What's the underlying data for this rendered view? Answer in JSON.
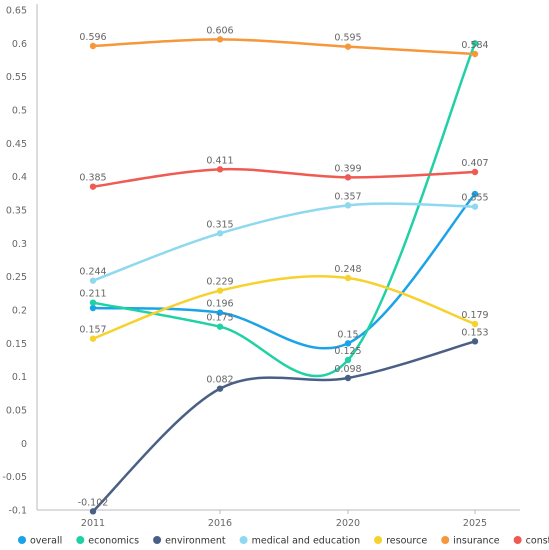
{
  "chart_data": {
    "type": "line",
    "x": [
      "2011",
      "2016",
      "2020",
      "2025"
    ],
    "ylim": [
      -0.1,
      0.65
    ],
    "yticks": [
      -0.1,
      -0.05,
      0,
      0.05,
      0.1,
      0.15,
      0.2,
      0.25,
      0.3,
      0.35,
      0.4,
      0.45,
      0.5,
      0.55,
      0.6,
      0.65
    ],
    "smooth": true,
    "grid": false,
    "legend_position": "bottom",
    "series": [
      {
        "name": "overall",
        "color": "#1aa3e8",
        "values": [
          0.203,
          0.196,
          0.15,
          0.374
        ],
        "labels": [
          "",
          "0.196",
          "0.15",
          ""
        ]
      },
      {
        "name": "economics",
        "color": "#1fd1a5",
        "values": [
          0.211,
          0.175,
          0.125,
          0.6
        ],
        "labels": [
          "0.211",
          "0.175",
          "0.125",
          ""
        ]
      },
      {
        "name": "environment",
        "color": "#4a5f85",
        "values": [
          -0.102,
          0.082,
          0.098,
          0.153
        ],
        "labels": [
          "-0.102",
          "0.082",
          "0.098",
          "0.153"
        ]
      },
      {
        "name": "medical and education",
        "color": "#8ed8f0",
        "values": [
          0.244,
          0.315,
          0.357,
          0.355
        ],
        "labels": [
          "0.244",
          "0.315",
          "0.357",
          "0.355"
        ]
      },
      {
        "name": "resource",
        "color": "#f7d12e",
        "values": [
          0.157,
          0.229,
          0.248,
          0.179
        ],
        "labels": [
          "0.157",
          "0.229",
          "0.248",
          "0.179"
        ]
      },
      {
        "name": "insurance",
        "color": "#f5973a",
        "values": [
          0.596,
          0.606,
          0.595,
          0.584
        ],
        "labels": [
          "0.596",
          "0.606",
          "0.595",
          "0.584"
        ]
      },
      {
        "name": "construction",
        "color": "#ef5a52",
        "values": [
          0.385,
          0.411,
          0.399,
          0.407
        ],
        "labels": [
          "0.385",
          "0.411",
          "0.399",
          "0.407"
        ]
      }
    ]
  }
}
